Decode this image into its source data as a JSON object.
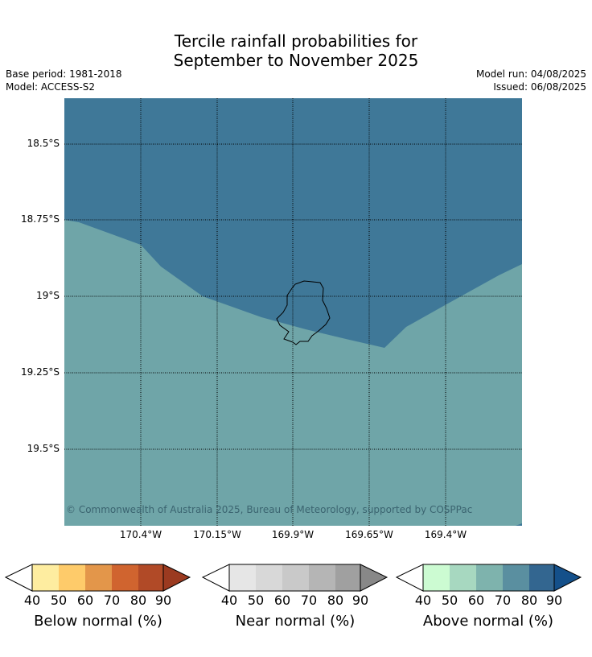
{
  "header": {
    "title_line1": "Tercile rainfall probabilities for",
    "title_line2": "September to November 2025",
    "base_period": "Base period: 1981-2018",
    "model": "Model: ACCESS-S2",
    "model_run": "Model run: 04/08/2025",
    "issued": "Issued: 06/08/2025"
  },
  "map": {
    "lat_labels": [
      "18.5°S",
      "18.75°S",
      "19°S",
      "19.25°S",
      "19.5°S"
    ],
    "lon_labels": [
      "170.4°W",
      "170.15°W",
      "169.9°W",
      "169.65°W",
      "169.4°W"
    ],
    "colors": {
      "ocean_high": "#3f7898",
      "ocean_mid": "#6fa5a8",
      "grid": "#000000"
    },
    "copyright": "© Commonwealth of Australia 2025, Bureau of Meteorology, supported by COSPPac"
  },
  "legend": {
    "ticks": [
      "40",
      "50",
      "60",
      "70",
      "80",
      "90"
    ],
    "bars": [
      {
        "label": "Below normal (%)",
        "colors": [
          "#ffffff",
          "#feeda0",
          "#fecb6a",
          "#e3964a",
          "#d0642f",
          "#b14a27",
          "#9b3a20"
        ]
      },
      {
        "label": "Near normal (%)",
        "colors": [
          "#ffffff",
          "#e6e6e6",
          "#d8d8d8",
          "#c9c9c9",
          "#b5b5b5",
          "#a0a0a0",
          "#888888"
        ]
      },
      {
        "label": "Above normal (%)",
        "colors": [
          "#ffffff",
          "#ccfbd2",
          "#a7d8c0",
          "#7eb3ad",
          "#5a8fa0",
          "#336690",
          "#14508a"
        ]
      }
    ]
  }
}
